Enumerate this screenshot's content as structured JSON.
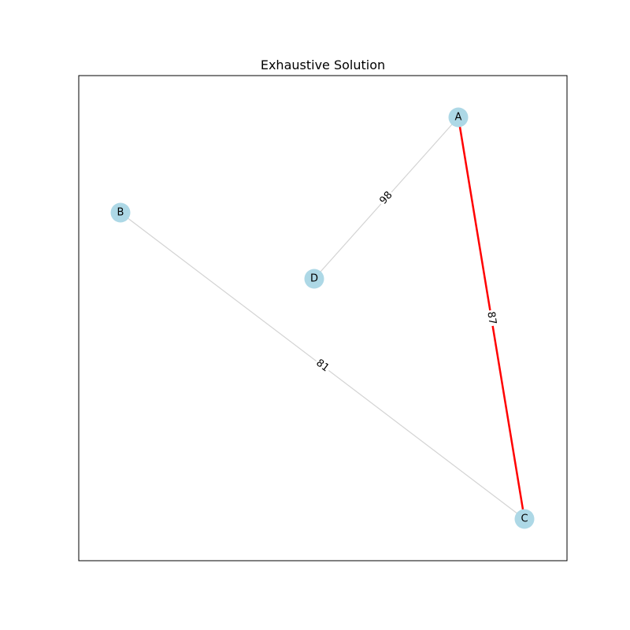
{
  "title": "Exhaustive Solution",
  "colors": {
    "node_fill": "#add8e6",
    "edge_default": "#d3d3d3",
    "edge_highlight": "#ff0000",
    "frame": "#000000"
  },
  "nodes": [
    {
      "id": "A",
      "label": "A"
    },
    {
      "id": "B",
      "label": "B"
    },
    {
      "id": "C",
      "label": "C"
    },
    {
      "id": "D",
      "label": "D"
    }
  ],
  "edges": [
    {
      "source": "A",
      "target": "D",
      "weight": "98",
      "highlighted": false
    },
    {
      "source": "B",
      "target": "C",
      "weight": "81",
      "highlighted": false
    },
    {
      "source": "A",
      "target": "C",
      "weight": "87",
      "highlighted": true
    }
  ]
}
